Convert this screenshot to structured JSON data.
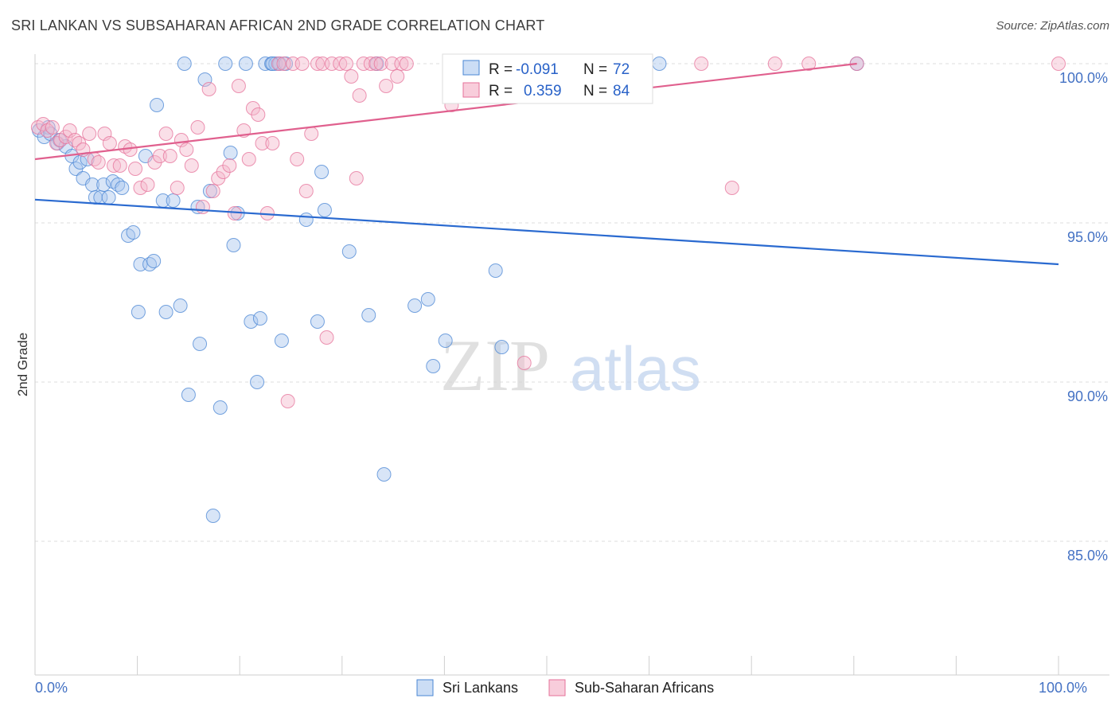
{
  "title": "SRI LANKAN VS SUBSAHARAN AFRICAN 2ND GRADE CORRELATION CHART",
  "source": "Source: ZipAtlas.com",
  "watermark": {
    "zip": "ZIP",
    "atlas": "atlas"
  },
  "colors": {
    "blue": "#4a86d4",
    "blue_fill": "#a9c6ee",
    "pink": "#e6719a",
    "pink_fill": "#f5b8cc",
    "tick_text": "#4472c4",
    "grid": "#dcdcdc"
  },
  "legend_box": {
    "rows": [
      {
        "r_label": "R =",
        "r_value": "-0.091",
        "n_label": "N =",
        "n_value": "72",
        "color": "blue"
      },
      {
        "r_label": "R =",
        "r_value": "0.359",
        "n_label": "N =",
        "n_value": "84",
        "color": "pink"
      }
    ]
  },
  "bottom_legend": [
    {
      "label": "Sri Lankans",
      "color": "blue"
    },
    {
      "label": "Sub-Saharan Africans",
      "color": "pink"
    }
  ],
  "chart_data": {
    "type": "scatter",
    "title": "SRI LANKAN VS SUBSAHARAN AFRICAN 2ND GRADE CORRELATION CHART",
    "xlabel": "",
    "ylabel": "2nd Grade",
    "xlim": [
      0,
      100
    ],
    "ylim": [
      80.8,
      100.3
    ],
    "x_tick_labels": [
      {
        "value": 0,
        "label": "0.0%"
      },
      {
        "value": 100,
        "label": "100.0%"
      }
    ],
    "y_ticks": [
      {
        "value": 85,
        "label": "85.0%"
      },
      {
        "value": 90,
        "label": "90.0%"
      },
      {
        "value": 95,
        "label": "95.0%"
      },
      {
        "value": 100,
        "label": "100.0%"
      }
    ],
    "grid": true,
    "legend_position": "top-center",
    "series": [
      {
        "name": "Sri Lankans",
        "color": "blue",
        "r": -0.091,
        "n": 72,
        "trend": {
          "x": [
            0,
            100
          ],
          "y": [
            95.73,
            93.7
          ]
        },
        "points": [
          [
            0.4,
            97.9
          ],
          [
            0.9,
            97.7
          ],
          [
            1.3,
            98.0
          ],
          [
            1.5,
            97.8
          ],
          [
            2.2,
            97.5
          ],
          [
            2.4,
            97.6
          ],
          [
            3.0,
            97.4
          ],
          [
            3.6,
            97.1
          ],
          [
            4.0,
            96.7
          ],
          [
            4.4,
            96.9
          ],
          [
            4.7,
            96.4
          ],
          [
            5.1,
            97.0
          ],
          [
            5.6,
            96.2
          ],
          [
            5.9,
            95.8
          ],
          [
            6.4,
            95.8
          ],
          [
            6.7,
            96.2
          ],
          [
            7.2,
            95.8
          ],
          [
            7.6,
            96.3
          ],
          [
            8.1,
            96.2
          ],
          [
            8.5,
            96.1
          ],
          [
            9.1,
            94.6
          ],
          [
            9.6,
            94.7
          ],
          [
            10.1,
            92.2
          ],
          [
            10.3,
            93.7
          ],
          [
            10.8,
            97.1
          ],
          [
            11.2,
            93.7
          ],
          [
            11.6,
            93.8
          ],
          [
            11.9,
            98.7
          ],
          [
            12.5,
            95.7
          ],
          [
            12.8,
            92.2
          ],
          [
            13.5,
            95.7
          ],
          [
            14.2,
            92.4
          ],
          [
            14.6,
            100.0
          ],
          [
            15.0,
            89.6
          ],
          [
            15.9,
            95.5
          ],
          [
            16.1,
            91.2
          ],
          [
            16.6,
            99.5
          ],
          [
            17.1,
            96.0
          ],
          [
            17.4,
            85.8
          ],
          [
            18.1,
            89.2
          ],
          [
            18.6,
            100.0
          ],
          [
            19.1,
            97.2
          ],
          [
            19.4,
            94.3
          ],
          [
            19.8,
            95.3
          ],
          [
            20.6,
            100.0
          ],
          [
            21.1,
            91.9
          ],
          [
            21.7,
            90.0
          ],
          [
            22.0,
            92.0
          ],
          [
            22.5,
            100.0
          ],
          [
            23.1,
            100.0
          ],
          [
            23.5,
            100.0
          ],
          [
            23.9,
            100.0
          ],
          [
            24.1,
            91.3
          ],
          [
            24.5,
            100.0
          ],
          [
            26.5,
            95.1
          ],
          [
            27.6,
            91.9
          ],
          [
            28.0,
            96.6
          ],
          [
            28.3,
            95.4
          ],
          [
            30.7,
            94.1
          ],
          [
            32.6,
            92.1
          ],
          [
            33.4,
            100.0
          ],
          [
            34.1,
            87.1
          ],
          [
            37.1,
            92.4
          ],
          [
            38.4,
            92.6
          ],
          [
            38.9,
            90.5
          ],
          [
            40.1,
            91.3
          ],
          [
            41.1,
            100.0
          ],
          [
            45.0,
            93.5
          ],
          [
            45.6,
            91.1
          ],
          [
            61.0,
            100.0
          ],
          [
            80.3,
            100.0
          ],
          [
            23.2,
            100.0
          ]
        ]
      },
      {
        "name": "Sub-Saharan Africans",
        "color": "pink",
        "r": 0.359,
        "n": 84,
        "trend": {
          "x": [
            0,
            80.3
          ],
          "y": [
            97.0,
            100.0
          ]
        },
        "points": [
          [
            0.3,
            98.0
          ],
          [
            0.8,
            98.1
          ],
          [
            1.2,
            97.9
          ],
          [
            1.7,
            98.0
          ],
          [
            2.1,
            97.5
          ],
          [
            2.5,
            97.6
          ],
          [
            3.0,
            97.7
          ],
          [
            3.4,
            97.9
          ],
          [
            3.9,
            97.6
          ],
          [
            4.3,
            97.5
          ],
          [
            4.7,
            97.3
          ],
          [
            5.3,
            97.8
          ],
          [
            5.8,
            97.0
          ],
          [
            6.2,
            96.9
          ],
          [
            6.8,
            97.8
          ],
          [
            7.3,
            97.5
          ],
          [
            7.7,
            96.8
          ],
          [
            8.3,
            96.8
          ],
          [
            8.8,
            97.4
          ],
          [
            9.3,
            97.3
          ],
          [
            9.8,
            96.7
          ],
          [
            10.3,
            96.1
          ],
          [
            11.0,
            96.2
          ],
          [
            11.7,
            96.9
          ],
          [
            12.2,
            97.1
          ],
          [
            12.8,
            97.8
          ],
          [
            13.2,
            97.1
          ],
          [
            13.9,
            96.1
          ],
          [
            14.3,
            97.6
          ],
          [
            14.8,
            97.3
          ],
          [
            15.3,
            96.8
          ],
          [
            15.9,
            98.0
          ],
          [
            16.4,
            95.5
          ],
          [
            17.0,
            99.2
          ],
          [
            17.4,
            96.0
          ],
          [
            17.9,
            96.4
          ],
          [
            18.4,
            96.6
          ],
          [
            19.0,
            96.8
          ],
          [
            19.5,
            95.3
          ],
          [
            19.9,
            99.3
          ],
          [
            20.4,
            97.9
          ],
          [
            20.9,
            97.0
          ],
          [
            21.3,
            98.6
          ],
          [
            21.8,
            98.4
          ],
          [
            22.2,
            97.5
          ],
          [
            22.7,
            95.3
          ],
          [
            23.2,
            97.5
          ],
          [
            23.8,
            100.0
          ],
          [
            24.3,
            100.0
          ],
          [
            24.7,
            89.4
          ],
          [
            25.2,
            100.0
          ],
          [
            25.6,
            97.0
          ],
          [
            26.1,
            100.0
          ],
          [
            26.5,
            96.0
          ],
          [
            27.0,
            97.8
          ],
          [
            27.6,
            100.0
          ],
          [
            28.1,
            100.0
          ],
          [
            28.5,
            91.4
          ],
          [
            29.0,
            100.0
          ],
          [
            29.8,
            100.0
          ],
          [
            30.4,
            100.0
          ],
          [
            30.9,
            99.6
          ],
          [
            31.4,
            96.4
          ],
          [
            31.7,
            99.0
          ],
          [
            32.1,
            100.0
          ],
          [
            32.8,
            100.0
          ],
          [
            33.3,
            100.0
          ],
          [
            33.8,
            100.0
          ],
          [
            34.3,
            99.3
          ],
          [
            34.9,
            100.0
          ],
          [
            35.4,
            99.6
          ],
          [
            35.8,
            100.0
          ],
          [
            36.3,
            100.0
          ],
          [
            40.7,
            98.7
          ],
          [
            47.3,
            100.0
          ],
          [
            47.8,
            90.6
          ],
          [
            49.2,
            100.0
          ],
          [
            55.1,
            100.0
          ],
          [
            65.1,
            100.0
          ],
          [
            68.1,
            96.1
          ],
          [
            72.3,
            100.0
          ],
          [
            75.6,
            100.0
          ],
          [
            80.3,
            100.0
          ],
          [
            100.0,
            100.0
          ]
        ]
      }
    ]
  }
}
